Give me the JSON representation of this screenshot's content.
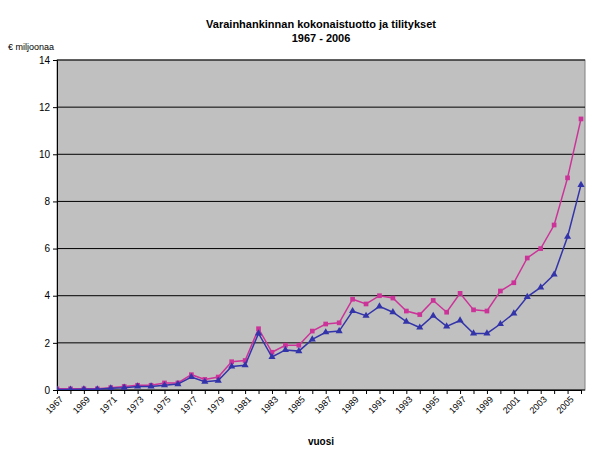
{
  "chart_data": {
    "type": "line",
    "title": "Varainhankinnan kokonaistuotto ja tilitykset",
    "subtitle": "1967 - 2006",
    "y_label": "€ miljoonaa",
    "x_label": "vuosi",
    "categories": [
      "1967",
      null,
      "1969",
      null,
      "1971",
      null,
      "1973",
      null,
      "1975",
      null,
      "1977",
      null,
      "1979",
      null,
      "1981",
      null,
      "1983",
      null,
      "1985",
      null,
      "1987",
      null,
      "1989",
      null,
      "1991",
      null,
      "1993",
      null,
      "1995",
      null,
      "1997",
      null,
      "1999",
      null,
      "2001",
      null,
      "2003",
      null,
      "2005",
      null
    ],
    "series": [
      {
        "color": "#cc3399",
        "marker": "square",
        "line_style": "solid",
        "values": [
          0.05,
          0.05,
          0.05,
          0.05,
          0.1,
          0.15,
          0.2,
          0.2,
          0.3,
          0.3,
          0.65,
          0.45,
          0.55,
          1.2,
          1.25,
          2.6,
          1.6,
          1.9,
          1.9,
          2.5,
          2.8,
          2.85,
          3.85,
          3.65,
          4.0,
          3.9,
          3.35,
          3.2,
          3.8,
          3.3,
          4.1,
          3.4,
          3.35,
          4.2,
          4.55,
          5.6,
          6.0,
          7.0,
          9.0,
          11.5
        ]
      },
      {
        "color": "#3333aa",
        "marker": "triangle",
        "line_style": "solid",
        "values": [
          0.02,
          0.02,
          0.03,
          0.03,
          0.07,
          0.1,
          0.15,
          0.15,
          0.2,
          0.25,
          0.55,
          0.35,
          0.4,
          1.0,
          1.05,
          2.4,
          1.4,
          1.7,
          1.65,
          2.15,
          2.45,
          2.5,
          3.35,
          3.15,
          3.55,
          3.3,
          2.9,
          2.65,
          3.15,
          2.7,
          2.95,
          2.4,
          2.4,
          2.8,
          3.25,
          3.95,
          4.35,
          4.9,
          6.5,
          8.7
        ]
      }
    ],
    "ylim": [
      0,
      14
    ],
    "yticks": [
      0,
      2,
      4,
      6,
      8,
      10,
      12,
      14
    ],
    "grid": true
  }
}
